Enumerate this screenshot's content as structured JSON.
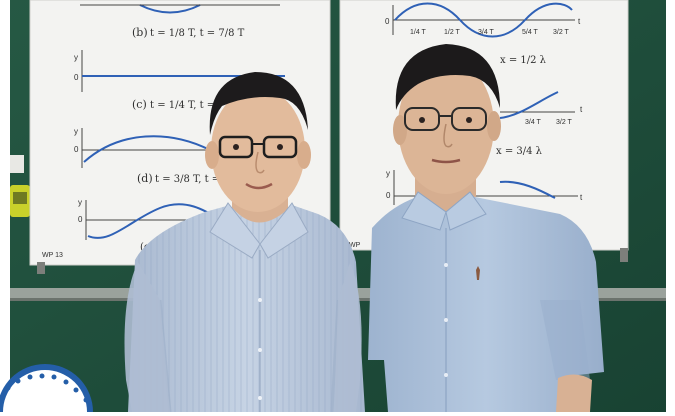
{
  "colors": {
    "background": "#ffffff",
    "chalkboard": "#1f4f3c",
    "chart_paper": "#f3f3f1",
    "wave_blue": "#2f61b6",
    "shirt_left": "#b8c7dc",
    "shirt_right": "#a9bfd9",
    "logo_blue": "#245ea8"
  },
  "left_poster": {
    "captions": [
      {
        "prefix": "(b)",
        "text": "t = 1/8 T,  t = 7/8 T"
      },
      {
        "prefix": "(c)",
        "text": "t = 1/4 T,  t ="
      },
      {
        "prefix": "(d)",
        "text": "t = 3/8 T,  t = 5/8"
      },
      {
        "prefix": "(e)",
        "text": ""
      }
    ],
    "axis_labels": [
      "y",
      "0",
      "y",
      "0",
      "y",
      "0"
    ],
    "footer": "WP 13"
  },
  "right_poster": {
    "tick_labels": [
      "1/4 T",
      "1/2 T",
      "3/4 T",
      "5/4 T",
      "3/2 T",
      "3/4 T",
      "3/2 T"
    ],
    "captions": [
      "x = 1/2 λ",
      "x = 3/4 λ"
    ],
    "axis_labels": [
      "0",
      "t",
      "y",
      "0",
      "t",
      "t"
    ],
    "footer": "WP"
  },
  "people": [
    {
      "name_ref": "person-left"
    },
    {
      "name_ref": "person-right"
    }
  ]
}
